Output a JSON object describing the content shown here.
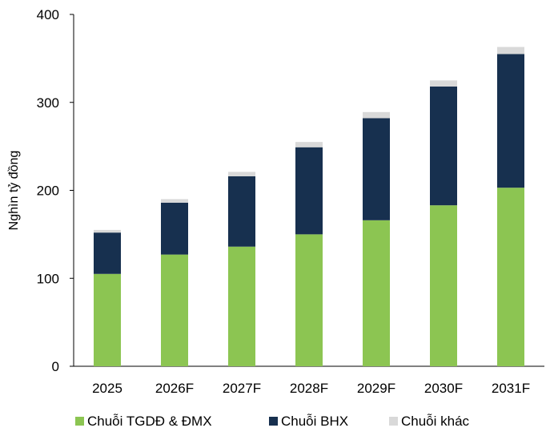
{
  "chart_data": {
    "type": "bar",
    "stacked": true,
    "title": "",
    "xlabel": "",
    "ylabel": "Nghìn tỷ đồng",
    "categories": [
      "2025",
      "2026F",
      "2027F",
      "2028F",
      "2029F",
      "2030F",
      "2031F"
    ],
    "ylim": [
      0,
      400
    ],
    "yticks": [
      "0",
      "100",
      "200",
      "300",
      "400"
    ],
    "grid": false,
    "legend_position": "bottom",
    "series": [
      {
        "name": "Chuỗi TGDĐ & ĐMX",
        "color": "#8cc552",
        "values": [
          105,
          127,
          136,
          150,
          166,
          183,
          203
        ]
      },
      {
        "name": "Chuỗi BHX",
        "color": "#17304f",
        "values": [
          47,
          59,
          80,
          99,
          116,
          135,
          152
        ]
      },
      {
        "name": "Chuỗi khác",
        "color": "#d9d9d9",
        "values": [
          3,
          4,
          5,
          6,
          7,
          7,
          8
        ]
      }
    ]
  }
}
